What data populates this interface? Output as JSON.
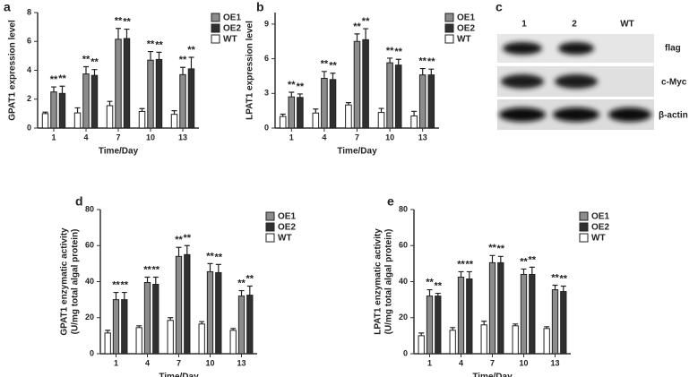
{
  "chart_data": [
    {
      "type": "bar",
      "label": "a",
      "x_label": "Time/Day",
      "y_label": [
        "GPAT1 expression level"
      ],
      "categories": [
        "1",
        "4",
        "7",
        "10",
        "13"
      ],
      "ylim": [
        0,
        8
      ],
      "yticks": [
        0,
        2,
        4,
        6,
        8
      ],
      "series": [
        {
          "name": "OE1",
          "color": "#8c8c8c",
          "values": [
            2.5,
            3.75,
            6.15,
            4.7,
            3.7
          ],
          "errors": [
            0.35,
            0.5,
            0.75,
            0.6,
            0.5
          ],
          "significance": [
            "**",
            "**",
            "**",
            "**",
            "**"
          ]
        },
        {
          "name": "OE2",
          "color": "#303030",
          "values": [
            2.4,
            3.65,
            6.2,
            4.75,
            4.1
          ],
          "errors": [
            0.5,
            0.4,
            0.65,
            0.5,
            0.8
          ],
          "significance": [
            "**",
            "**",
            "**",
            "**",
            "**"
          ]
        },
        {
          "name": "WT",
          "color": "#ffffff",
          "values": [
            1.0,
            1.05,
            1.55,
            1.15,
            0.95
          ],
          "errors": [
            0.1,
            0.35,
            0.3,
            0.2,
            0.25
          ]
        }
      ]
    },
    {
      "type": "bar",
      "label": "b",
      "x_label": "Time/Day",
      "y_label": [
        "LPAT1 expression level"
      ],
      "categories": [
        "1",
        "4",
        "7",
        "10",
        "13"
      ],
      "ylim": [
        0,
        10
      ],
      "yticks": [
        0,
        3,
        6,
        9
      ],
      "series": [
        {
          "name": "OE1",
          "color": "#8c8c8c",
          "values": [
            2.7,
            4.3,
            7.5,
            5.65,
            4.6
          ],
          "errors": [
            0.4,
            0.6,
            0.65,
            0.4,
            0.55
          ],
          "significance": [
            "**",
            "**",
            "**",
            "**",
            "**"
          ]
        },
        {
          "name": "OE2",
          "color": "#303030",
          "values": [
            2.65,
            4.2,
            7.65,
            5.45,
            4.6
          ],
          "errors": [
            0.3,
            0.55,
            0.95,
            0.5,
            0.5
          ],
          "significance": [
            "**",
            "**",
            "**",
            "**",
            "**"
          ]
        },
        {
          "name": "WT",
          "color": "#ffffff",
          "values": [
            1.0,
            1.3,
            2.0,
            1.35,
            1.05
          ],
          "errors": [
            0.2,
            0.35,
            0.2,
            0.35,
            0.4
          ]
        }
      ]
    },
    {
      "type": "bar",
      "label": "d",
      "x_label": "Time/Day",
      "y_label": [
        "GPAT1 enzymatic activity",
        "(U/mg total algal protein)"
      ],
      "categories": [
        "1",
        "4",
        "7",
        "10",
        "13"
      ],
      "ylim": [
        0,
        80
      ],
      "yticks": [
        0,
        20,
        40,
        60,
        80
      ],
      "series": [
        {
          "name": "OE1",
          "color": "#8c8c8c",
          "values": [
            30,
            39.5,
            54,
            45.5,
            32
          ],
          "errors": [
            4,
            3,
            5,
            4.5,
            3
          ],
          "significance": [
            "**",
            "**",
            "**",
            "**",
            "**"
          ]
        },
        {
          "name": "OE2",
          "color": "#303030",
          "values": [
            30,
            38.5,
            55,
            45,
            32.5
          ],
          "errors": [
            4,
            4,
            5,
            4.5,
            5
          ],
          "significance": [
            "**",
            "**",
            "**",
            "**",
            "**"
          ]
        },
        {
          "name": "WT",
          "color": "#ffffff",
          "values": [
            11.5,
            14.5,
            18.5,
            16.5,
            13
          ],
          "errors": [
            1.5,
            1,
            1.5,
            1.3,
            1
          ]
        }
      ]
    },
    {
      "type": "bar",
      "label": "e",
      "x_label": "Time/Day",
      "y_label": [
        "LPAT1 enzymatic activity",
        "(U/mg total algal protein)"
      ],
      "categories": [
        "1",
        "4",
        "7",
        "10",
        "13"
      ],
      "ylim": [
        0,
        80
      ],
      "yticks": [
        0,
        20,
        40,
        60,
        80
      ],
      "series": [
        {
          "name": "OE1",
          "color": "#8c8c8c",
          "values": [
            32,
            42.5,
            50.5,
            44,
            35.5
          ],
          "errors": [
            3.5,
            3,
            4,
            3,
            2.5
          ],
          "significance": [
            "**",
            "**",
            "**",
            "**",
            "**"
          ]
        },
        {
          "name": "OE2",
          "color": "#303030",
          "values": [
            32,
            41.5,
            50.5,
            44,
            34.5
          ],
          "errors": [
            1.5,
            4,
            3.5,
            4,
            3
          ],
          "significance": [
            "**",
            "**",
            "**",
            "**",
            "**"
          ]
        },
        {
          "name": "WT",
          "color": "#ffffff",
          "values": [
            10,
            13,
            16,
            15.5,
            14
          ],
          "errors": [
            1.5,
            1.5,
            2,
            1,
            1
          ]
        }
      ]
    }
  ],
  "blot": {
    "label": "c",
    "lanes": [
      "1",
      "2",
      "WT"
    ],
    "rows": [
      "flag",
      "c-Myc",
      "β-actin"
    ]
  }
}
